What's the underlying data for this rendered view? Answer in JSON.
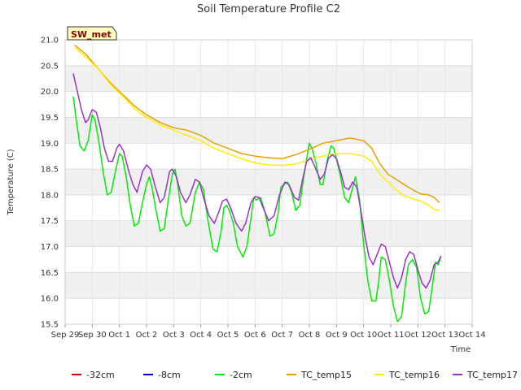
{
  "chart_data": {
    "type": "line",
    "title": "Soil Temperature Profile C2",
    "xlabel": "Time",
    "ylabel": "Temperature (C)",
    "badge": "SW_met",
    "x_ticks": [
      "Sep 29",
      "Sep 30",
      "Oct 1",
      "Oct 2",
      "Oct 3",
      "Oct 4",
      "Oct 5",
      "Oct 6",
      "Oct 7",
      "Oct 8",
      "Oct 9",
      "Oct 10",
      "Oct 11",
      "Oct 12",
      "Oct 13",
      "Oct 14"
    ],
    "xlim_days": [
      0,
      15
    ],
    "ylim": [
      15.5,
      21.0
    ],
    "y_ticks": [
      "15.5",
      "16.0",
      "16.5",
      "17.0",
      "17.5",
      "18.0",
      "18.5",
      "19.0",
      "19.5",
      "20.0",
      "20.5",
      "21.0"
    ],
    "banded_background": true,
    "legend_position": "bottom",
    "series": [
      {
        "name": "-32cm",
        "color": "#cc0000",
        "points": []
      },
      {
        "name": "-8cm",
        "color": "#0000cc",
        "points": []
      },
      {
        "name": "-2cm",
        "color": "#00ee00",
        "points": [
          [
            0.3,
            19.9
          ],
          [
            0.4,
            19.5
          ],
          [
            0.55,
            18.95
          ],
          [
            0.7,
            18.85
          ],
          [
            0.85,
            19.05
          ],
          [
            1.0,
            19.55
          ],
          [
            1.1,
            19.45
          ],
          [
            1.25,
            19.0
          ],
          [
            1.4,
            18.45
          ],
          [
            1.55,
            18.0
          ],
          [
            1.7,
            18.05
          ],
          [
            1.85,
            18.45
          ],
          [
            2.0,
            18.8
          ],
          [
            2.1,
            18.75
          ],
          [
            2.25,
            18.35
          ],
          [
            2.4,
            17.8
          ],
          [
            2.55,
            17.4
          ],
          [
            2.7,
            17.45
          ],
          [
            2.85,
            17.85
          ],
          [
            3.0,
            18.2
          ],
          [
            3.1,
            18.35
          ],
          [
            3.2,
            18.15
          ],
          [
            3.35,
            17.7
          ],
          [
            3.5,
            17.3
          ],
          [
            3.65,
            17.35
          ],
          [
            3.8,
            17.9
          ],
          [
            3.95,
            18.4
          ],
          [
            4.05,
            18.5
          ],
          [
            4.15,
            18.2
          ],
          [
            4.3,
            17.6
          ],
          [
            4.45,
            17.4
          ],
          [
            4.6,
            17.45
          ],
          [
            4.8,
            18.05
          ],
          [
            4.95,
            18.25
          ],
          [
            5.1,
            18.1
          ],
          [
            5.25,
            17.55
          ],
          [
            5.45,
            16.95
          ],
          [
            5.6,
            16.9
          ],
          [
            5.75,
            17.3
          ],
          [
            5.85,
            17.75
          ],
          [
            5.95,
            17.8
          ],
          [
            6.05,
            17.7
          ],
          [
            6.2,
            17.45
          ],
          [
            6.35,
            17.0
          ],
          [
            6.55,
            16.8
          ],
          [
            6.7,
            17.0
          ],
          [
            6.85,
            17.55
          ],
          [
            6.95,
            17.95
          ],
          [
            7.05,
            17.9
          ],
          [
            7.2,
            17.95
          ],
          [
            7.35,
            17.7
          ],
          [
            7.55,
            17.2
          ],
          [
            7.7,
            17.25
          ],
          [
            7.85,
            17.65
          ],
          [
            7.95,
            18.15
          ],
          [
            8.05,
            18.2
          ],
          [
            8.2,
            18.25
          ],
          [
            8.35,
            18.05
          ],
          [
            8.5,
            17.7
          ],
          [
            8.65,
            17.8
          ],
          [
            8.75,
            18.2
          ],
          [
            8.9,
            18.7
          ],
          [
            9.0,
            19.0
          ],
          [
            9.1,
            18.9
          ],
          [
            9.25,
            18.6
          ],
          [
            9.4,
            18.2
          ],
          [
            9.5,
            18.2
          ],
          [
            9.65,
            18.65
          ],
          [
            9.8,
            18.95
          ],
          [
            9.9,
            18.9
          ],
          [
            10.0,
            18.7
          ],
          [
            10.15,
            18.35
          ],
          [
            10.3,
            17.95
          ],
          [
            10.45,
            17.85
          ],
          [
            10.6,
            18.15
          ],
          [
            10.7,
            18.35
          ],
          [
            10.85,
            17.9
          ],
          [
            11.0,
            17.05
          ],
          [
            11.15,
            16.35
          ],
          [
            11.3,
            15.95
          ],
          [
            11.45,
            15.95
          ],
          [
            11.55,
            16.3
          ],
          [
            11.65,
            16.8
          ],
          [
            11.8,
            16.75
          ],
          [
            11.95,
            16.35
          ],
          [
            12.1,
            15.85
          ],
          [
            12.25,
            15.55
          ],
          [
            12.4,
            15.65
          ],
          [
            12.55,
            16.3
          ],
          [
            12.65,
            16.65
          ],
          [
            12.8,
            16.75
          ],
          [
            12.95,
            16.6
          ],
          [
            13.1,
            16.0
          ],
          [
            13.25,
            15.7
          ],
          [
            13.4,
            15.75
          ],
          [
            13.55,
            16.3
          ],
          [
            13.65,
            16.7
          ],
          [
            13.75,
            16.65
          ],
          [
            13.85,
            16.8
          ]
        ]
      },
      {
        "name": "TC_temp15",
        "color": "#e8a000",
        "points": [
          [
            0.35,
            20.9
          ],
          [
            0.8,
            20.7
          ],
          [
            1.2,
            20.45
          ],
          [
            1.7,
            20.15
          ],
          [
            2.1,
            19.95
          ],
          [
            2.6,
            19.7
          ],
          [
            3.0,
            19.55
          ],
          [
            3.5,
            19.4
          ],
          [
            4.0,
            19.3
          ],
          [
            4.5,
            19.25
          ],
          [
            5.0,
            19.15
          ],
          [
            5.5,
            19.0
          ],
          [
            6.0,
            18.9
          ],
          [
            6.5,
            18.8
          ],
          [
            7.0,
            18.75
          ],
          [
            7.5,
            18.72
          ],
          [
            8.0,
            18.7
          ],
          [
            8.5,
            18.78
          ],
          [
            9.0,
            18.88
          ],
          [
            9.5,
            19.0
          ],
          [
            10.0,
            19.05
          ],
          [
            10.5,
            19.1
          ],
          [
            11.0,
            19.05
          ],
          [
            11.3,
            18.9
          ],
          [
            11.6,
            18.6
          ],
          [
            11.9,
            18.4
          ],
          [
            12.2,
            18.3
          ],
          [
            12.5,
            18.2
          ],
          [
            12.8,
            18.1
          ],
          [
            13.1,
            18.02
          ],
          [
            13.4,
            18.0
          ],
          [
            13.6,
            17.95
          ],
          [
            13.8,
            17.85
          ]
        ]
      },
      {
        "name": "TC_temp16",
        "color": "#ffee00",
        "points": [
          [
            0.35,
            20.85
          ],
          [
            0.8,
            20.65
          ],
          [
            1.2,
            20.45
          ],
          [
            1.7,
            20.12
          ],
          [
            2.1,
            19.92
          ],
          [
            2.6,
            19.65
          ],
          [
            3.0,
            19.5
          ],
          [
            3.5,
            19.35
          ],
          [
            4.0,
            19.25
          ],
          [
            4.5,
            19.15
          ],
          [
            5.0,
            19.05
          ],
          [
            5.5,
            18.9
          ],
          [
            6.0,
            18.8
          ],
          [
            6.5,
            18.7
          ],
          [
            7.0,
            18.62
          ],
          [
            7.5,
            18.58
          ],
          [
            8.0,
            18.57
          ],
          [
            8.5,
            18.6
          ],
          [
            9.0,
            18.68
          ],
          [
            9.5,
            18.75
          ],
          [
            10.0,
            18.8
          ],
          [
            10.5,
            18.8
          ],
          [
            11.0,
            18.75
          ],
          [
            11.3,
            18.65
          ],
          [
            11.6,
            18.4
          ],
          [
            11.9,
            18.25
          ],
          [
            12.2,
            18.1
          ],
          [
            12.5,
            17.98
          ],
          [
            12.8,
            17.93
          ],
          [
            13.1,
            17.88
          ],
          [
            13.4,
            17.8
          ],
          [
            13.6,
            17.72
          ],
          [
            13.8,
            17.7
          ]
        ]
      },
      {
        "name": "TC_temp17",
        "color": "#9933cc",
        "points": [
          [
            0.3,
            20.35
          ],
          [
            0.45,
            20.0
          ],
          [
            0.6,
            19.65
          ],
          [
            0.75,
            19.4
          ],
          [
            0.85,
            19.45
          ],
          [
            1.0,
            19.65
          ],
          [
            1.15,
            19.6
          ],
          [
            1.3,
            19.3
          ],
          [
            1.45,
            18.9
          ],
          [
            1.6,
            18.65
          ],
          [
            1.75,
            18.65
          ],
          [
            1.9,
            18.9
          ],
          [
            2.0,
            18.98
          ],
          [
            2.15,
            18.85
          ],
          [
            2.35,
            18.45
          ],
          [
            2.5,
            18.2
          ],
          [
            2.65,
            18.05
          ],
          [
            2.85,
            18.45
          ],
          [
            3.0,
            18.58
          ],
          [
            3.15,
            18.5
          ],
          [
            3.3,
            18.2
          ],
          [
            3.5,
            17.85
          ],
          [
            3.65,
            17.95
          ],
          [
            3.85,
            18.45
          ],
          [
            3.95,
            18.5
          ],
          [
            4.1,
            18.35
          ],
          [
            4.25,
            18.05
          ],
          [
            4.45,
            17.85
          ],
          [
            4.6,
            18.0
          ],
          [
            4.8,
            18.3
          ],
          [
            4.95,
            18.25
          ],
          [
            5.1,
            17.95
          ],
          [
            5.3,
            17.6
          ],
          [
            5.5,
            17.45
          ],
          [
            5.65,
            17.65
          ],
          [
            5.8,
            17.88
          ],
          [
            5.95,
            17.92
          ],
          [
            6.1,
            17.75
          ],
          [
            6.3,
            17.45
          ],
          [
            6.5,
            17.3
          ],
          [
            6.65,
            17.45
          ],
          [
            6.85,
            17.85
          ],
          [
            7.0,
            17.97
          ],
          [
            7.15,
            17.95
          ],
          [
            7.3,
            17.75
          ],
          [
            7.5,
            17.5
          ],
          [
            7.7,
            17.6
          ],
          [
            7.9,
            18.0
          ],
          [
            8.1,
            18.25
          ],
          [
            8.25,
            18.2
          ],
          [
            8.45,
            17.95
          ],
          [
            8.6,
            17.9
          ],
          [
            8.75,
            18.3
          ],
          [
            8.9,
            18.65
          ],
          [
            9.05,
            18.72
          ],
          [
            9.2,
            18.55
          ],
          [
            9.4,
            18.3
          ],
          [
            9.55,
            18.4
          ],
          [
            9.7,
            18.7
          ],
          [
            9.85,
            18.78
          ],
          [
            10.0,
            18.7
          ],
          [
            10.15,
            18.45
          ],
          [
            10.3,
            18.15
          ],
          [
            10.45,
            18.1
          ],
          [
            10.6,
            18.25
          ],
          [
            10.75,
            18.15
          ],
          [
            10.9,
            17.7
          ],
          [
            11.05,
            17.2
          ],
          [
            11.2,
            16.8
          ],
          [
            11.35,
            16.65
          ],
          [
            11.5,
            16.85
          ],
          [
            11.65,
            17.05
          ],
          [
            11.8,
            17.0
          ],
          [
            11.95,
            16.7
          ],
          [
            12.1,
            16.4
          ],
          [
            12.25,
            16.2
          ],
          [
            12.4,
            16.4
          ],
          [
            12.55,
            16.75
          ],
          [
            12.7,
            16.9
          ],
          [
            12.85,
            16.85
          ],
          [
            13.0,
            16.55
          ],
          [
            13.15,
            16.3
          ],
          [
            13.3,
            16.2
          ],
          [
            13.45,
            16.35
          ],
          [
            13.6,
            16.65
          ],
          [
            13.75,
            16.7
          ],
          [
            13.85,
            16.82
          ]
        ]
      }
    ]
  }
}
